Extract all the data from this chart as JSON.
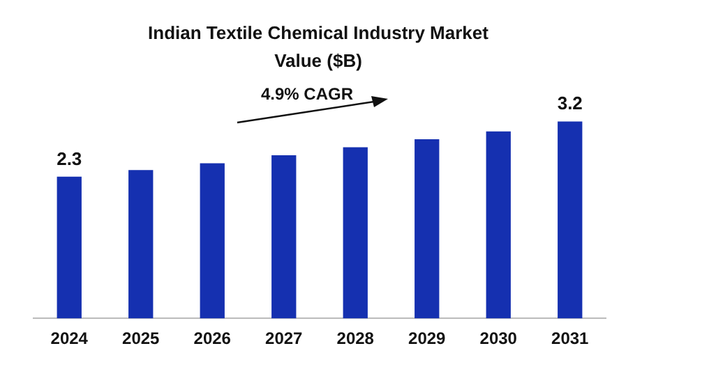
{
  "chart_data": {
    "type": "bar",
    "title": "Indian Textile Chemical Industry Market Value ($B)",
    "categories": [
      "2024",
      "2025",
      "2026",
      "2027",
      "2028",
      "2029",
      "2030",
      "2031"
    ],
    "values": [
      2.3,
      2.41,
      2.52,
      2.65,
      2.78,
      2.91,
      3.04,
      3.2
    ],
    "value_labels": [
      "2.3",
      null,
      null,
      null,
      null,
      null,
      null,
      "3.2"
    ],
    "color": "#1530b0",
    "annotations": [
      "4.9% CAGR"
    ],
    "grid": false,
    "legend": false
  }
}
